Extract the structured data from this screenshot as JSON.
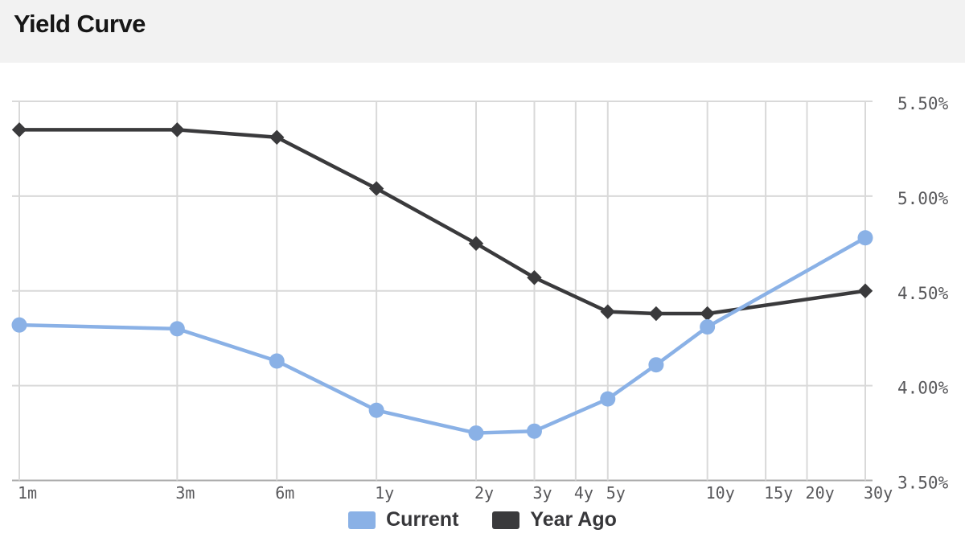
{
  "header": {
    "title": "Yield Curve"
  },
  "legend": [
    {
      "label": "Current",
      "color": "#8AB1E6"
    },
    {
      "label": "Year Ago",
      "color": "#3A3A3C"
    }
  ],
  "colors": {
    "gridline": "#d9d9d9",
    "axis_line": "#ababab",
    "tick_text": "#58585b",
    "current_series": "#8AB1E6",
    "year_ago_series": "#3A3A3C"
  },
  "chart_data": {
    "type": "line",
    "title": "Yield Curve",
    "xlabel": "",
    "ylabel": "",
    "x_scale": "log(months)",
    "grid": true,
    "legend_position": "bottom-center",
    "ylim": [
      3.5,
      5.5
    ],
    "y_tick_step": 0.5,
    "y_tick_labels": [
      "5.50%",
      "5.00%",
      "4.50%",
      "4.00%",
      "3.50%"
    ],
    "y_tick_values": [
      5.5,
      5.0,
      4.5,
      4.0,
      3.5
    ],
    "categories": [
      "1m",
      "3m",
      "6m",
      "1y",
      "2y",
      "3y",
      "4y",
      "5y",
      "10y",
      "15y",
      "20y",
      "30y"
    ],
    "tick_months": [
      1,
      3,
      6,
      12,
      24,
      36,
      48,
      60,
      120,
      180,
      240,
      360
    ],
    "series": [
      {
        "name": "Year Ago",
        "color": "#3A3A3C",
        "marker": "diamond",
        "months": [
          1,
          3,
          6,
          12,
          24,
          36,
          60,
          84,
          120,
          360
        ],
        "maturities": [
          "1m",
          "3m",
          "6m",
          "1y",
          "2y",
          "3y",
          "5y",
          "7y",
          "10y",
          "30y"
        ],
        "values": [
          5.35,
          5.35,
          5.31,
          5.04,
          4.75,
          4.57,
          4.39,
          4.38,
          4.38,
          4.5
        ]
      },
      {
        "name": "Current",
        "color": "#8AB1E6",
        "marker": "circle",
        "months": [
          1,
          3,
          6,
          12,
          24,
          36,
          60,
          84,
          120,
          360
        ],
        "maturities": [
          "1m",
          "3m",
          "6m",
          "1y",
          "2y",
          "3y",
          "5y",
          "7y",
          "10y",
          "30y"
        ],
        "values": [
          4.32,
          4.3,
          4.13,
          3.87,
          3.75,
          3.76,
          3.93,
          4.11,
          4.31,
          4.78
        ]
      }
    ]
  }
}
